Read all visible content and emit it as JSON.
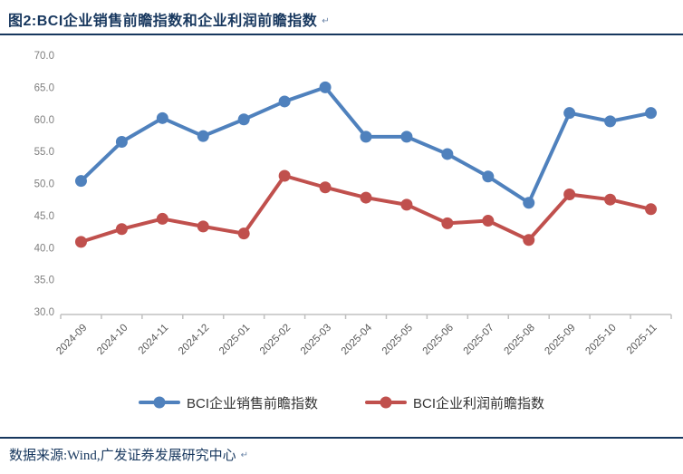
{
  "header": {
    "title": "图2:BCI企业销售前瞻指数和企业利润前瞻指数",
    "return_mark": "↵"
  },
  "footer": {
    "source": "数据来源:Wind,广发证券发展研究中心",
    "return_mark": "↵"
  },
  "chart_data": {
    "type": "line",
    "title": "BCI企业销售前瞻指数和企业利润前瞻指数",
    "categories": [
      "2024-09",
      "2024-10",
      "2024-11",
      "2024-12",
      "2025-01",
      "2025-02",
      "2025-03",
      "2025-04",
      "2025-05",
      "2025-06",
      "2025-07",
      "2025-08",
      "2025-09",
      "2025-10",
      "2025-11"
    ],
    "series": [
      {
        "name": "BCI企业销售前瞻指数",
        "color": "#4f81bd",
        "values": [
          50.4,
          56.5,
          60.2,
          57.4,
          60.0,
          62.8,
          65.0,
          57.3,
          57.3,
          54.6,
          51.1,
          47.0,
          61.0,
          59.7,
          61.0
        ]
      },
      {
        "name": "BCI企业利润前瞻指数",
        "color": "#c0504d",
        "values": [
          40.9,
          42.9,
          44.5,
          43.3,
          42.2,
          51.2,
          49.4,
          47.8,
          46.7,
          43.8,
          44.2,
          41.2,
          48.3,
          47.5,
          46.0
        ]
      }
    ],
    "ylim": [
      30,
      70
    ],
    "ytick_step": 5,
    "grid": false,
    "legend_position": "bottom",
    "axis_color": "#c0c0c0",
    "ytick_label_color": "#7f7f7f",
    "xtick_label_color": "#595959"
  }
}
